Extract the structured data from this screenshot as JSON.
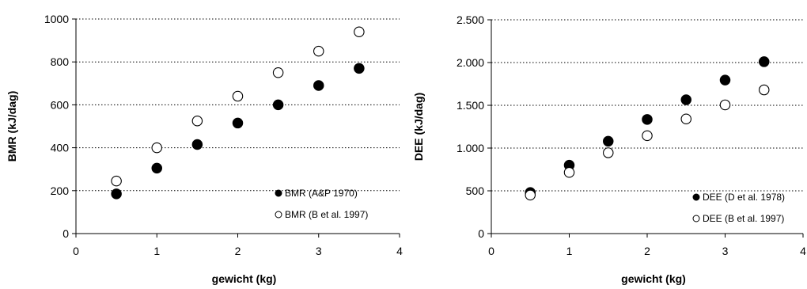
{
  "chart_data": [
    {
      "type": "scatter",
      "xlabel": "gewicht (kg)",
      "ylabel": "BMR (kJ/dag)",
      "xlim": [
        0,
        4
      ],
      "ylim": [
        0,
        1000
      ],
      "xticks": [
        0,
        1,
        2,
        3,
        4
      ],
      "xtick_labels": [
        "0",
        "1",
        "2",
        "3",
        "4"
      ],
      "yticks": [
        0,
        200,
        400,
        600,
        800,
        1000
      ],
      "ytick_labels": [
        "0",
        "200",
        "400",
        "600",
        "800",
        "1000"
      ],
      "grid": "horizontal-dotted",
      "legend_position": "bottom-right",
      "series": [
        {
          "name": "BMR (A&P 1970)",
          "marker": "filled",
          "x": [
            0.5,
            1.0,
            1.5,
            2.0,
            2.5,
            3.0,
            3.5
          ],
          "y": [
            185,
            305,
            415,
            515,
            600,
            690,
            770
          ]
        },
        {
          "name": "BMR (B et al. 1997)",
          "marker": "open",
          "x": [
            0.5,
            1.0,
            1.5,
            2.0,
            2.5,
            3.0,
            3.5
          ],
          "y": [
            245,
            400,
            525,
            640,
            750,
            850,
            940
          ]
        }
      ]
    },
    {
      "type": "scatter",
      "xlabel": "gewicht (kg)",
      "ylabel": "DEE (kJ/dag)",
      "xlim": [
        0,
        4
      ],
      "ylim": [
        0,
        2500
      ],
      "xticks": [
        0,
        1,
        2,
        3,
        4
      ],
      "xtick_labels": [
        "0",
        "1",
        "2",
        "3",
        "4"
      ],
      "yticks": [
        0,
        500,
        1000,
        1500,
        2000,
        2500
      ],
      "ytick_labels": [
        "0",
        "500",
        "1.000",
        "1.500",
        "2.000",
        "2.500"
      ],
      "grid": "horizontal-dotted",
      "legend_position": "bottom-right",
      "series": [
        {
          "name": "DEE (D et al. 1978)",
          "marker": "filled",
          "x": [
            0.5,
            1.0,
            1.5,
            2.0,
            2.5,
            3.0,
            3.5
          ],
          "y": [
            480,
            800,
            1080,
            1335,
            1565,
            1795,
            2010
          ]
        },
        {
          "name": "DEE (B et al. 1997)",
          "marker": "open",
          "x": [
            0.5,
            1.0,
            1.5,
            2.0,
            2.5,
            3.0,
            3.5
          ],
          "y": [
            450,
            715,
            945,
            1145,
            1340,
            1505,
            1680
          ]
        }
      ]
    }
  ]
}
